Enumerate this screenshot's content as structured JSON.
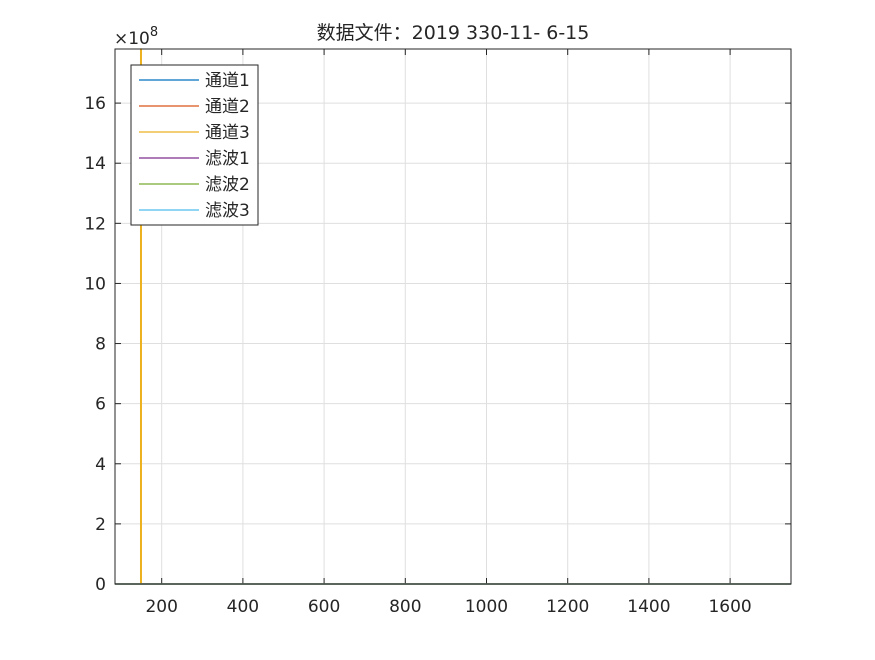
{
  "chart_data": {
    "type": "line",
    "title": "数据文件：2019 330-11- 6-15",
    "xlabel": "",
    "ylabel": "",
    "xlim": [
      85,
      1750
    ],
    "ylim": [
      0,
      1780000000.0
    ],
    "y_exponent_label": "×10",
    "y_exponent_power": "8",
    "x_ticks": [
      200,
      400,
      600,
      800,
      1000,
      1200,
      1400,
      1600
    ],
    "x_tick_labels": [
      "200",
      "400",
      "600",
      "800",
      "1000",
      "1200",
      "1400",
      "1600"
    ],
    "y_ticks": [
      0,
      200000000.0,
      400000000.0,
      600000000.0,
      800000000.0,
      1000000000.0,
      1200000000.0,
      1400000000.0,
      1600000000.0
    ],
    "y_tick_labels": [
      "0",
      "2",
      "4",
      "6",
      "8",
      "10",
      "12",
      "14",
      "16"
    ],
    "grid": true,
    "legend_position": "top-left",
    "series": [
      {
        "name": "通道1",
        "color": "#0072BD",
        "x": [
          85,
          1750
        ],
        "y": [
          0,
          0
        ]
      },
      {
        "name": "通道2",
        "color": "#D95319",
        "x": [
          85,
          1750
        ],
        "y": [
          0,
          0
        ]
      },
      {
        "name": "通道3",
        "color": "#EDB120",
        "x": [
          85,
          148,
          148,
          150,
          150,
          1750
        ],
        "y": [
          0,
          0,
          1780000000.0,
          1780000000.0,
          0,
          0
        ]
      },
      {
        "name": "滤波1",
        "color": "#7E2F8E",
        "x": [
          85,
          1750
        ],
        "y": [
          0,
          0
        ]
      },
      {
        "name": "滤波2",
        "color": "#77AC30",
        "x": [
          85,
          1750
        ],
        "y": [
          0,
          0
        ]
      },
      {
        "name": "滤波3",
        "color": "#4DBEEE",
        "x": [
          85,
          1750
        ],
        "y": [
          0,
          0
        ]
      }
    ]
  }
}
